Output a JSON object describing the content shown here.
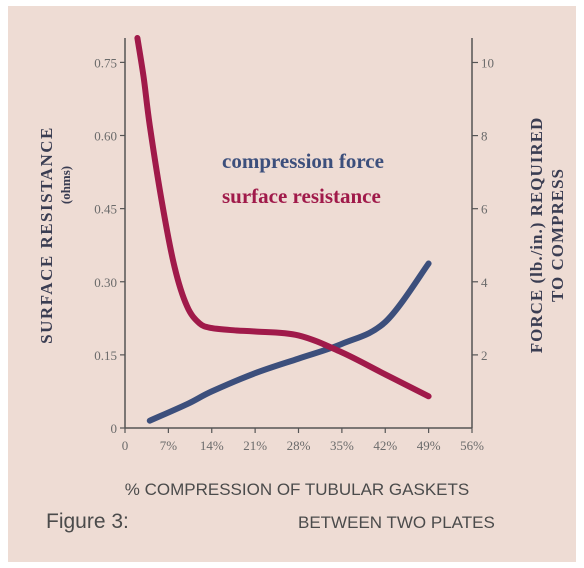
{
  "chart_data": {
    "type": "line",
    "title": "",
    "xlabel": "% COMPRESSION OF TUBULAR GASKETS BETWEEN TWO PLATES",
    "xlabel_lines": [
      "% COMPRESSION OF TUBULAR GASKETS",
      "BETWEEN TWO PLATES"
    ],
    "caption": "Figure 3:",
    "ylabel_left": "SURFACE RESISTANCE",
    "ylabel_left_unit": "(ohms)",
    "ylabel_right_lines": [
      "FORCE (lb./in.) REQUIRED",
      "TO COMPRESS"
    ],
    "x_ticks": [
      "0",
      "7%",
      "14%",
      "21%",
      "28%",
      "35%",
      "42%",
      "49%",
      "56%"
    ],
    "xlim": [
      0,
      56
    ],
    "y_left_ticks": [
      "0",
      "0.15",
      "0.30",
      "0.45",
      "0.60",
      "0.75"
    ],
    "ylim_left": [
      0,
      0.8
    ],
    "y_right_ticks": [
      "2",
      "4",
      "6",
      "8",
      "10"
    ],
    "ylim_right": [
      0,
      10.67
    ],
    "legend": [
      "compression force",
      "surface resistance"
    ],
    "legend_placement": "center",
    "grid": false,
    "colors": {
      "compression_force": "#3c4f7c",
      "surface_resistance": "#a01a4a",
      "axis": "#555555",
      "background": "#eedcd4"
    },
    "series": [
      {
        "name": "compression force",
        "axis": "right",
        "x": [
          4,
          10,
          14,
          21,
          28,
          35,
          42,
          49
        ],
        "y": [
          0.2,
          0.65,
          1.0,
          1.5,
          1.9,
          2.3,
          2.9,
          4.5
        ]
      },
      {
        "name": "surface resistance",
        "axis": "left",
        "x": [
          2,
          3,
          4,
          6,
          8,
          10,
          12,
          14,
          18,
          21,
          28,
          35,
          42,
          49
        ],
        "y": [
          0.8,
          0.72,
          0.62,
          0.46,
          0.33,
          0.25,
          0.215,
          0.205,
          0.2,
          0.198,
          0.19,
          0.155,
          0.11,
          0.065
        ]
      }
    ]
  }
}
